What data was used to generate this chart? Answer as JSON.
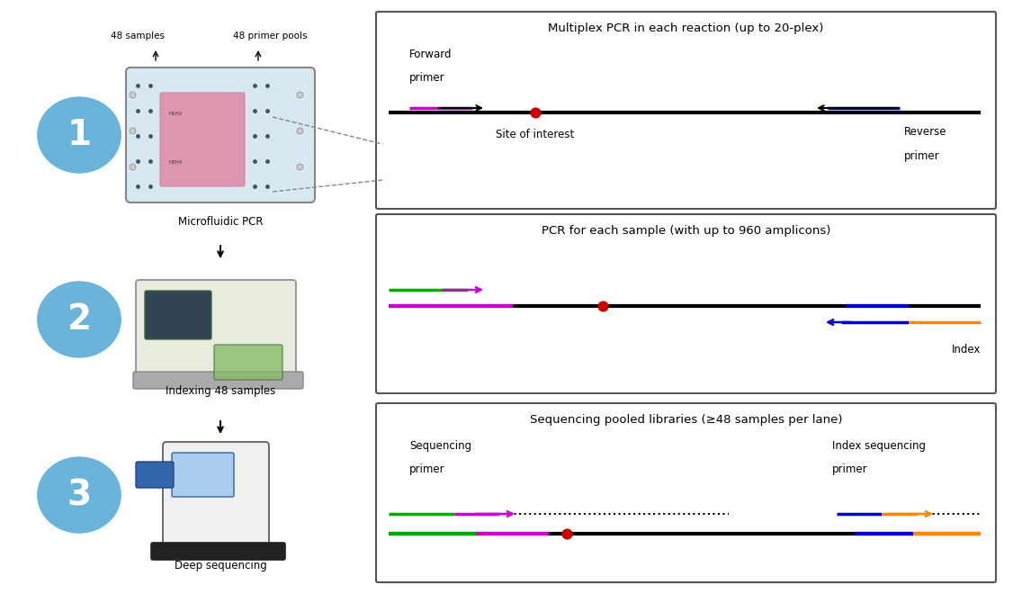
{
  "fig_width": 11.26,
  "fig_height": 6.6,
  "bg_color": "#ffffff",
  "circle_color": "#6ab4dc",
  "circle_text_color": "#ffffff",
  "box_edge_color": "#555555",
  "box_bg_color": "#ffffff",
  "panel1_title": "Multiplex PCR in each reaction (up to 20-plex)",
  "panel2_title": "PCR for each sample (with up to 960 amplicons)",
  "panel3_title": "Sequencing pooled libraries (≥48 samples per lane)",
  "left_label1": "Microfluidic PCR",
  "left_label2": "Indexing 48 samples",
  "left_label3": "Deep sequencing",
  "label_48s": "48 samples",
  "label_48p": "48 primer pools",
  "color_green": "#00aa00",
  "color_magenta": "#cc00cc",
  "color_blue": "#0000cc",
  "color_orange": "#ff8800",
  "color_black": "#000000",
  "color_red": "#cc0000",
  "color_gray": "#888888"
}
